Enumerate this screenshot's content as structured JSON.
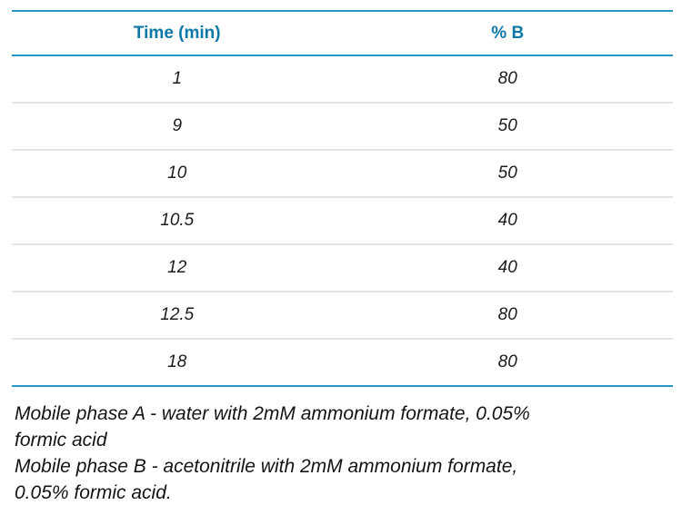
{
  "table": {
    "columns": [
      {
        "label": "Time (min)"
      },
      {
        "label": "% B"
      }
    ],
    "rows": [
      {
        "time": "1",
        "percent_b": "80"
      },
      {
        "time": "9",
        "percent_b": "50"
      },
      {
        "time": "10",
        "percent_b": "50"
      },
      {
        "time": "10.5",
        "percent_b": "40"
      },
      {
        "time": "12",
        "percent_b": "40"
      },
      {
        "time": "12.5",
        "percent_b": "80"
      },
      {
        "time": "18",
        "percent_b": "80"
      }
    ]
  },
  "notes": {
    "mobile_phase_a": {
      "lines": [
        "Mobile phase A - water with 2mM ammonium formate, 0.05%",
        "formic acid"
      ]
    },
    "mobile_phase_b": {
      "lines": [
        "Mobile phase B - acetonitrile with 2mM ammonium formate,",
        "0.05% formic acid."
      ]
    }
  },
  "colors": {
    "accent_header_text": "#0e78a8",
    "table_rule": "#2797c6",
    "row_divider": "#e4e4e4",
    "body_text": "#1c1c1c"
  }
}
